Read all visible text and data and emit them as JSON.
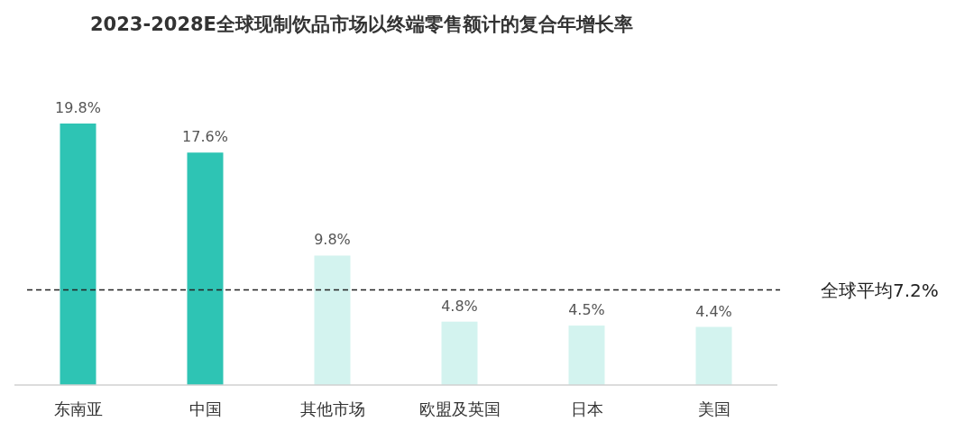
{
  "chart_data": {
    "type": "bar",
    "title": "2023-2028E全球现制饮品市场以终端零售额计的复合年增长率",
    "categories": [
      "东南亚",
      "中国",
      "其他市场",
      "欧盟及英国",
      "日本",
      "美国"
    ],
    "values": [
      19.8,
      17.6,
      9.8,
      4.8,
      4.5,
      4.4
    ],
    "colors": [
      "#2ec4b4",
      "#2ec4b4",
      "#d3f3ef",
      "#d3f3ef",
      "#d3f3ef",
      "#d3f3ef"
    ],
    "value_labels": [
      "19.8%",
      "17.6%",
      "9.8%",
      "4.8%",
      "4.5%",
      "4.4%"
    ],
    "ref_lines": [
      {
        "axis": "y",
        "value": 7.2,
        "label": "全球平均7.2%",
        "color": "#222222",
        "line_style": "dashed"
      }
    ]
  }
}
